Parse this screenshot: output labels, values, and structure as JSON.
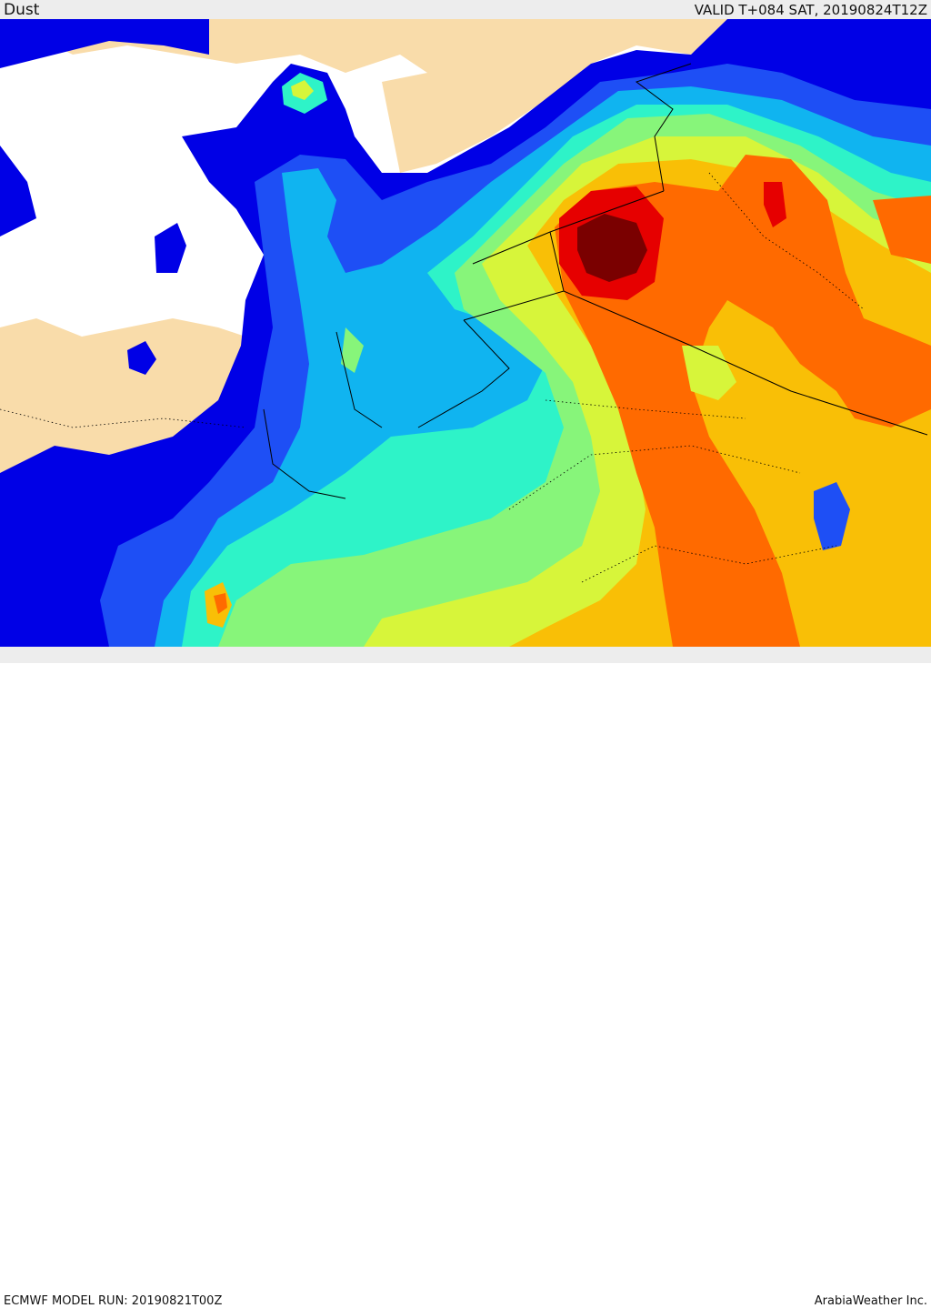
{
  "header": {
    "field_name": "Dust",
    "valid_time": "VALID T+084 SAT, 20190824T12Z"
  },
  "footer": {
    "model_run": "ECMWF MODEL RUN: 20190821T00Z",
    "credit": "ArabiaWeather Inc."
  },
  "map": {
    "colors": {
      "land": "#f9dcaa",
      "sea": "#ffffff",
      "level_1": "#0000e6",
      "level_2": "#1e4ff5",
      "level_3": "#10b4f0",
      "level_4": "#2ef3c8",
      "level_5": "#87f57a",
      "level_6": "#d7f53a",
      "level_7": "#f9bf06",
      "level_8": "#ff6a00",
      "level_9": "#e60000",
      "level_10": "#7a0000"
    }
  }
}
